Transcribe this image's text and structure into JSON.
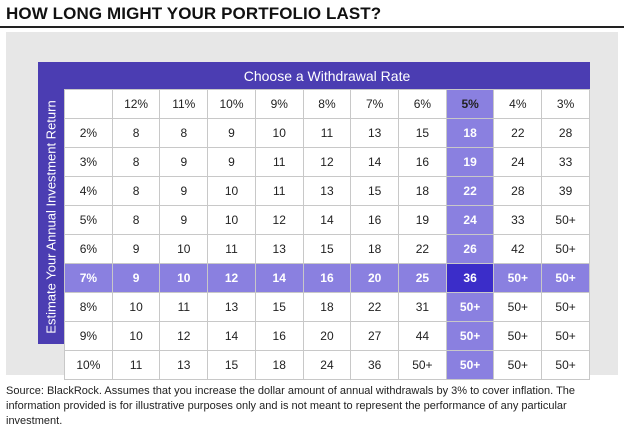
{
  "title": "HOW LONG MIGHT YOUR PORTFOLIO LAST?",
  "source_note": "Source: BlackRock. Assumes that you increase the dollar amount of annual withdrawals by 3% to cover inflation. The information provided is for illustrative purposes only and is not meant to represent the performance of any particular investment.",
  "colors": {
    "frame": "#4b3db2",
    "highlight": "#8a80e0",
    "cross": "#3b2dc9"
  },
  "chart_data": {
    "type": "table",
    "column_header": "Choose a Withdrawal Rate",
    "row_header": "Estimate Your Annual Investment Return",
    "columns": [
      "12%",
      "11%",
      "10%",
      "9%",
      "8%",
      "7%",
      "6%",
      "5%",
      "4%",
      "3%"
    ],
    "rows": [
      "2%",
      "3%",
      "4%",
      "5%",
      "6%",
      "7%",
      "8%",
      "9%",
      "10%"
    ],
    "values": [
      [
        "8",
        "8",
        "9",
        "10",
        "11",
        "13",
        "15",
        "18",
        "22",
        "28"
      ],
      [
        "8",
        "9",
        "9",
        "11",
        "12",
        "14",
        "16",
        "19",
        "24",
        "33"
      ],
      [
        "8",
        "9",
        "10",
        "11",
        "13",
        "15",
        "18",
        "22",
        "28",
        "39"
      ],
      [
        "8",
        "9",
        "10",
        "12",
        "14",
        "16",
        "19",
        "24",
        "33",
        "50+"
      ],
      [
        "9",
        "10",
        "11",
        "13",
        "15",
        "18",
        "22",
        "26",
        "42",
        "50+"
      ],
      [
        "9",
        "10",
        "12",
        "14",
        "16",
        "20",
        "25",
        "36",
        "50+",
        "50+"
      ],
      [
        "10",
        "11",
        "13",
        "15",
        "18",
        "22",
        "31",
        "50+",
        "50+",
        "50+"
      ],
      [
        "10",
        "12",
        "14",
        "16",
        "20",
        "27",
        "44",
        "50+",
        "50+",
        "50+"
      ],
      [
        "11",
        "13",
        "15",
        "18",
        "24",
        "36",
        "50+",
        "50+",
        "50+",
        "50+"
      ]
    ],
    "highlighted_column": "5%",
    "highlighted_row": "7%"
  }
}
